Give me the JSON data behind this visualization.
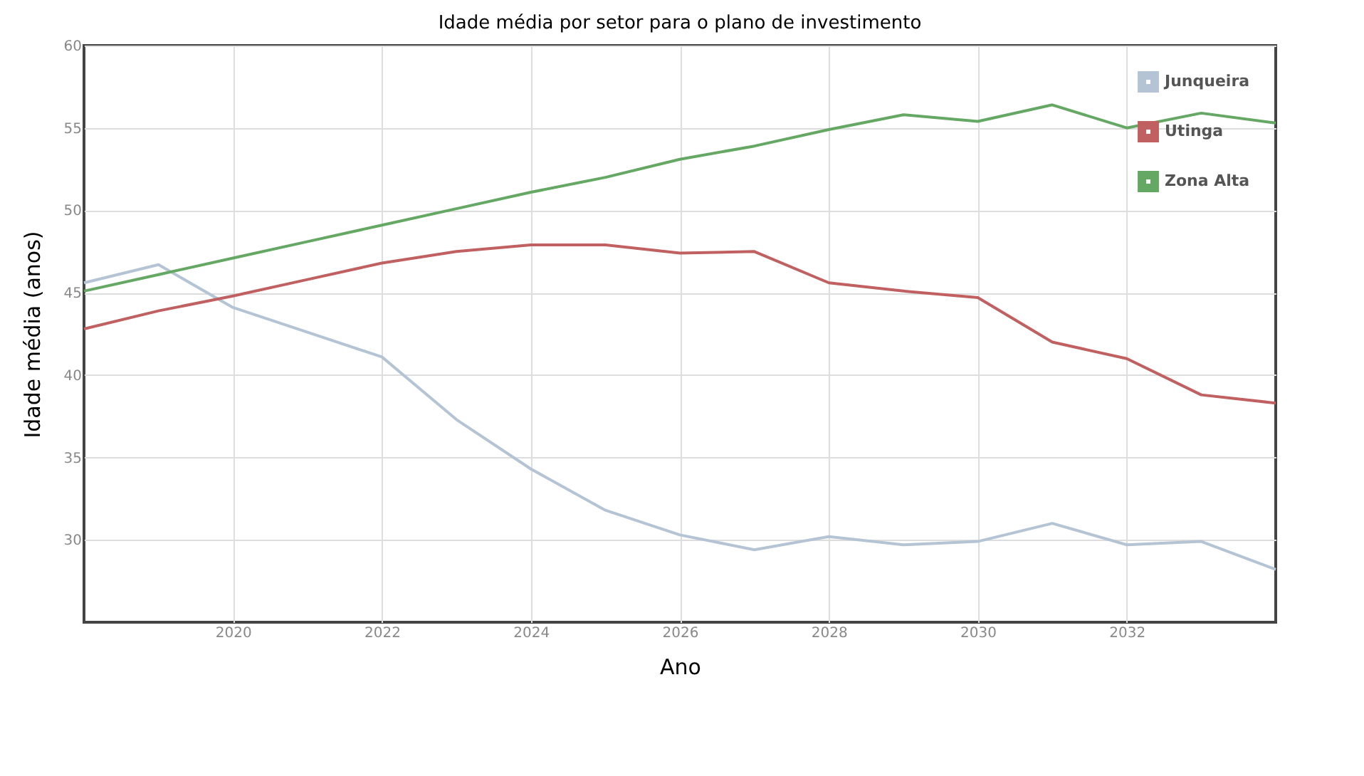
{
  "chart_data": {
    "type": "line",
    "title": "Idade média por setor para o plano de investimento",
    "xlabel": "Ano",
    "ylabel": "Idade média (anos)",
    "x": [
      2018,
      2019,
      2020,
      2021,
      2022,
      2023,
      2024,
      2025,
      2026,
      2027,
      2028,
      2029,
      2030,
      2031,
      2032,
      2033,
      2034
    ],
    "series": [
      {
        "name": "Junqueira",
        "color": "#b4c4d4",
        "values": [
          45.6,
          46.7,
          44.1,
          42.6,
          41.1,
          37.3,
          34.3,
          31.8,
          30.3,
          29.4,
          30.2,
          29.7,
          29.9,
          31.0,
          29.7,
          29.9,
          28.2
        ]
      },
      {
        "name": "Utinga",
        "color": "#c06060",
        "values": [
          42.8,
          43.9,
          44.8,
          45.8,
          46.8,
          47.5,
          47.9,
          47.9,
          47.4,
          47.5,
          45.6,
          45.1,
          44.7,
          42.0,
          41.0,
          38.8,
          38.3
        ]
      },
      {
        "name": "Zona Alta",
        "color": "#64a864",
        "values": [
          45.1,
          46.1,
          47.1,
          48.1,
          49.1,
          50.1,
          51.1,
          52.0,
          53.1,
          53.9,
          54.9,
          55.8,
          55.4,
          56.4,
          55.0,
          55.9,
          55.3
        ]
      }
    ],
    "xlim": [
      2018,
      2034
    ],
    "xticks": [
      2020,
      2022,
      2024,
      2026,
      2028,
      2030,
      2032
    ],
    "ylim": [
      25,
      60
    ],
    "yticks": [
      30,
      35,
      40,
      45,
      50,
      55,
      60
    ],
    "grid": true,
    "legend": "top right",
    "marker": "none",
    "line_style": "solid"
  }
}
